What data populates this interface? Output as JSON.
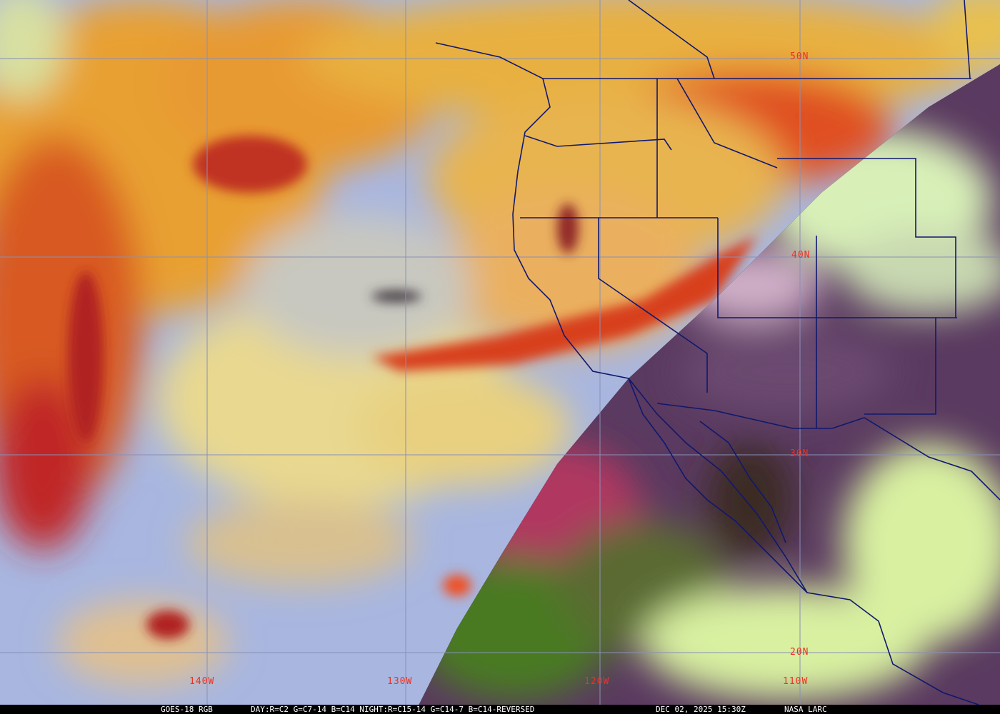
{
  "image": {
    "type": "satellite-rgb-composite",
    "colors": {
      "ocean_clear": "#a8b8e0",
      "high_cloud_orange": "#e89a30",
      "cold_cloud_red": "#d8301c",
      "low_cloud_yellow": "#e8d890",
      "night_land": "#5a3a60",
      "night_vegetation": "#4a7a20",
      "night_cloud": "#d8f0a0",
      "borders": "#10186e",
      "grid": "#8890b8",
      "label": "#f0301e"
    }
  },
  "grid_labels": {
    "lat": [
      "50N",
      "40N",
      "30N",
      "20N"
    ],
    "lon": [
      "140W",
      "130W",
      "120W",
      "110W"
    ]
  },
  "caption": {
    "product": "GOES-18 RGB",
    "recipe": "DAY:R=C2 G=C7-14 B=C14 NIGHT:R=C15-14 G=C14-7 B=C14-REVERSED",
    "datetime": "DEC 02, 2025 15:30Z",
    "source": "NASA LARC"
  }
}
